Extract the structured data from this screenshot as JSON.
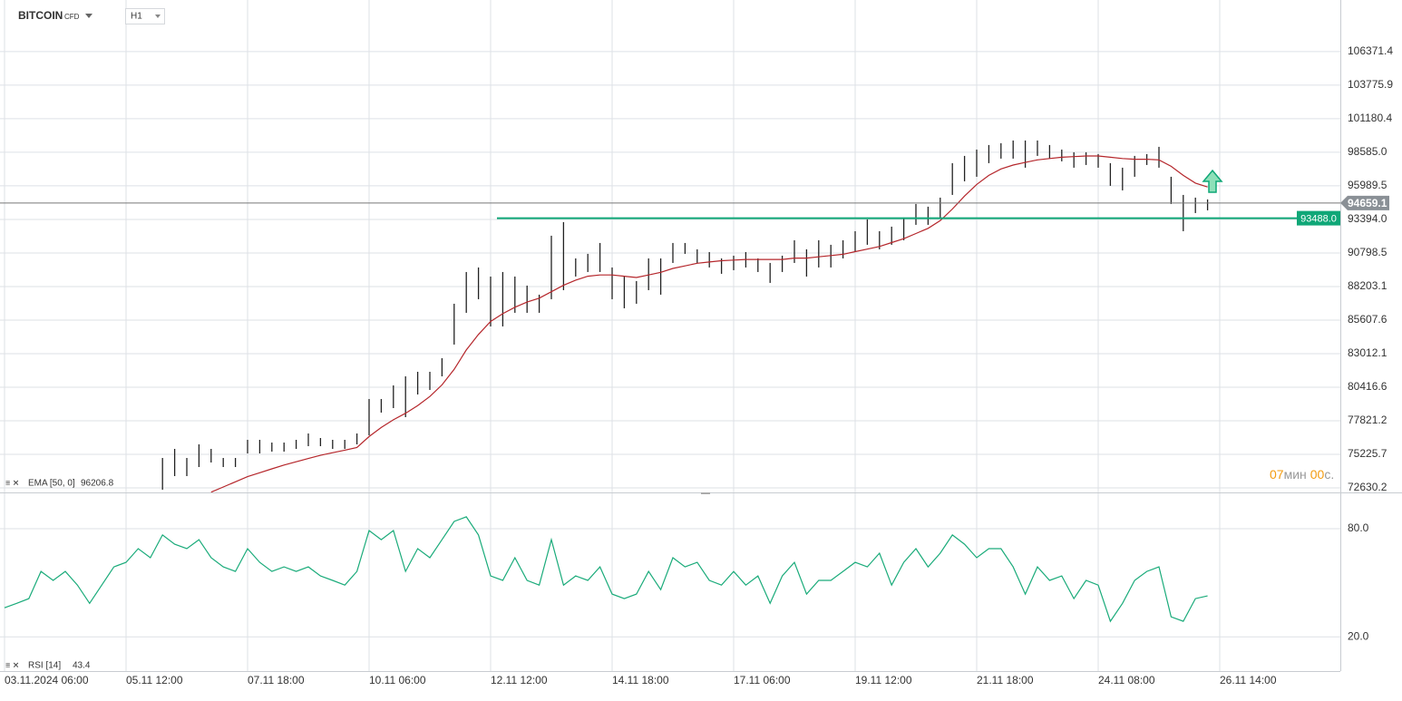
{
  "chart_data": [
    {
      "type": "ohlc",
      "title": "BITCOIN",
      "subtitle": "CFD",
      "timeframe": "H1",
      "color": "#222222",
      "high": [
        null,
        null,
        null,
        null,
        null,
        null,
        null,
        null,
        null,
        null,
        null,
        null,
        null,
        74945,
        75647,
        74945,
        75997,
        75647,
        74945,
        74945,
        76348,
        76348,
        76137,
        76137,
        76348,
        76839,
        76488,
        76348,
        76348,
        76839,
        79505,
        79505,
        80557,
        81258,
        81609,
        81609,
        82661,
        86871,
        89326,
        89677,
        88975,
        89326,
        88975,
        88274,
        87573,
        92132,
        93185,
        90378,
        90729,
        91571,
        89677,
        88975,
        88625,
        90378,
        90378,
        91571,
        91571,
        91080,
        90869,
        90378,
        90588,
        90869,
        90378,
        90027,
        90588,
        91781,
        91080,
        91781,
        91431,
        91781,
        92483,
        93395,
        92483,
        92833,
        93535,
        94587,
        94377,
        95078,
        97744,
        98305,
        98796,
        99147,
        99287,
        99497,
        99497,
        99497,
        99147,
        98796,
        98586,
        98586,
        98446,
        97744,
        97393,
        98305,
        98446,
        99006,
        96691,
        95288,
        95078,
        94938,
        null,
        null,
        null,
        null,
        null,
        null,
        null,
        null,
        null,
        null
      ],
      "low": [
        null,
        null,
        null,
        null,
        null,
        null,
        null,
        null,
        null,
        null,
        null,
        null,
        null,
        72490,
        73542,
        73542,
        74244,
        74594,
        74244,
        74244,
        75296,
        75296,
        75436,
        75436,
        75647,
        75857,
        75857,
        75647,
        75647,
        75997,
        76698,
        78453,
        78803,
        78102,
        79855,
        80206,
        81258,
        83714,
        86170,
        87222,
        85117,
        85117,
        86170,
        86170,
        86170,
        87222,
        87923,
        88975,
        89326,
        89326,
        87222,
        86520,
        86871,
        87923,
        87573,
        90027,
        90729,
        90027,
        89677,
        89186,
        89466,
        89677,
        89326,
        88484,
        89326,
        90027,
        88975,
        89677,
        89677,
        90378,
        90869,
        91431,
        91080,
        91431,
        91781,
        92974,
        92974,
        93535,
        95288,
        96341,
        96691,
        97744,
        98095,
        98095,
        97393,
        98305,
        98095,
        97884,
        97393,
        97603,
        97393,
        95990,
        95639,
        96691,
        97603,
        97393,
        94587,
        92483,
        93886,
        94096,
        null,
        null,
        null,
        null,
        null,
        null,
        null,
        null,
        null,
        null
      ],
      "ema": {
        "label": "EMA [50, 0]",
        "value_text": 96206.8,
        "color": "#b5262b",
        "values": [
          null,
          null,
          null,
          null,
          null,
          null,
          null,
          null,
          null,
          null,
          null,
          null,
          null,
          null,
          null,
          null,
          null,
          72300,
          72700,
          73100,
          73500,
          73800,
          74100,
          74400,
          74650,
          74900,
          75150,
          75350,
          75550,
          75750,
          76600,
          77300,
          77900,
          78400,
          79000,
          79700,
          80600,
          81800,
          83300,
          84500,
          85500,
          86100,
          86600,
          87000,
          87300,
          87800,
          88300,
          88700,
          89000,
          89100,
          89100,
          89000,
          88900,
          89100,
          89300,
          89600,
          89800,
          90000,
          90100,
          90200,
          90250,
          90300,
          90300,
          90300,
          90300,
          90400,
          90400,
          90500,
          90600,
          90700,
          90900,
          91100,
          91300,
          91600,
          91900,
          92300,
          92700,
          93300,
          94200,
          95200,
          96100,
          96800,
          97300,
          97600,
          97800,
          98000,
          98100,
          98200,
          98250,
          98300,
          98300,
          98200,
          98100,
          98050,
          98050,
          98000,
          97500,
          96800,
          96200,
          95900,
          null,
          null,
          null,
          null,
          null,
          null,
          null,
          null,
          null,
          null
        ]
      },
      "current_price": 94659.1,
      "support": {
        "value": 93488,
        "label": "93488.0",
        "color": "#0fa777"
      },
      "countdown": {
        "minutes": "07",
        "minutes_unit": "мин",
        "seconds": "00",
        "seconds_unit": "с."
      },
      "ylim": [
        72280,
        109100
      ],
      "yticks": [
        106371.4,
        103775.9,
        101180.4,
        {
          "value": 98585,
          "label": "98585.0"
        },
        95989.5,
        {
          "value": 93394,
          "label": "93394.0"
        },
        90798.5,
        88203.1,
        85607.6,
        83012.1,
        80416.6,
        77821.2,
        75225.7,
        72630.2
      ],
      "grid": true
    },
    {
      "type": "line",
      "label": "RSI [14]",
      "value_text": 43.4,
      "color": "#1aab7a",
      "categories": [
        "03.11.2024 06:00",
        null,
        null,
        null,
        null,
        null,
        null,
        null,
        null,
        null,
        "05.11 12:00",
        null,
        null,
        null,
        null,
        null,
        null,
        null,
        null,
        null,
        "07.11 18:00",
        null,
        null,
        null,
        null,
        null,
        null,
        null,
        null,
        null,
        "10.11 06:00",
        null,
        null,
        null,
        null,
        null,
        null,
        null,
        null,
        null,
        "12.11 12:00",
        null,
        null,
        null,
        null,
        null,
        null,
        null,
        null,
        null,
        "14.11 18:00",
        null,
        null,
        null,
        null,
        null,
        null,
        null,
        null,
        null,
        "17.11 06:00",
        null,
        null,
        null,
        null,
        null,
        null,
        null,
        null,
        null,
        "19.11 12:00",
        null,
        null,
        null,
        null,
        null,
        null,
        null,
        null,
        null,
        "21.11 18:00",
        null,
        null,
        null,
        null,
        null,
        null,
        null,
        null,
        null,
        "24.11 08:00",
        null,
        null,
        null,
        null,
        null,
        null,
        null,
        null,
        null,
        "26.11 14:00",
        null,
        null,
        null,
        null,
        null,
        null,
        null,
        null,
        null
      ],
      "values": [
        36.1,
        38.6,
        41.2,
        56.3,
        51.3,
        56.3,
        48.7,
        38.6,
        48.7,
        58.8,
        61.3,
        68.9,
        63.9,
        76.5,
        71.4,
        68.9,
        73.9,
        63.9,
        58.8,
        56.3,
        68.9,
        61.3,
        56.3,
        58.8,
        56.3,
        58.8,
        53.8,
        51.3,
        48.7,
        56.3,
        79.0,
        73.9,
        79.0,
        56.3,
        68.9,
        63.9,
        73.9,
        84.0,
        86.6,
        76.5,
        53.8,
        51.3,
        63.9,
        51.3,
        48.7,
        73.9,
        48.7,
        53.8,
        51.3,
        58.8,
        43.7,
        41.2,
        43.7,
        56.3,
        46.2,
        63.9,
        58.8,
        61.3,
        51.3,
        48.7,
        56.3,
        48.7,
        53.8,
        38.6,
        53.8,
        61.3,
        43.7,
        51.3,
        51.3,
        56.3,
        61.3,
        58.8,
        66.4,
        48.7,
        61.3,
        68.9,
        58.8,
        66.4,
        76.5,
        71.4,
        63.9,
        68.9,
        68.9,
        58.8,
        43.7,
        58.8,
        51.3,
        53.8,
        41.2,
        51.3,
        48.7,
        28.6,
        38.6,
        51.3,
        56.3,
        58.8,
        31.1,
        28.6,
        41.2,
        42.7,
        null,
        null,
        null,
        null,
        null,
        null,
        null,
        null,
        null,
        null
      ],
      "ylim": [
        1,
        97.6
      ],
      "yticks": [
        {
          "value": 80,
          "label": "80.0"
        },
        {
          "value": 20,
          "label": "20.0"
        }
      ],
      "grid": true
    }
  ]
}
